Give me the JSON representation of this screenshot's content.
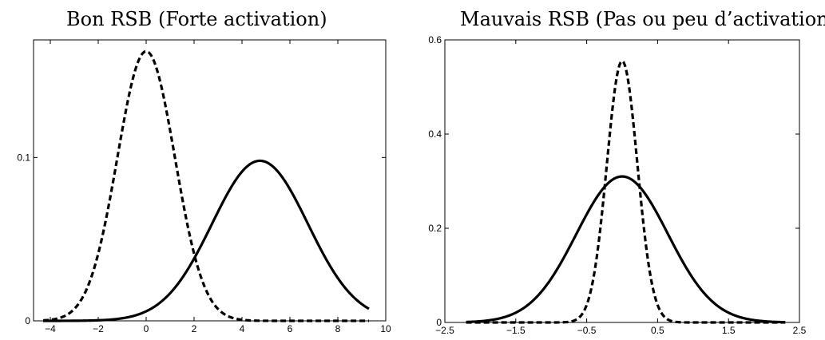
{
  "chart_data": [
    {
      "type": "line",
      "title": "Bon RSB (Forte activation)",
      "xlabel": "",
      "ylabel": "",
      "xlim": [
        -4.7,
        10
      ],
      "ylim": [
        0,
        0.172
      ],
      "xticks": [
        -4,
        -2,
        0,
        2,
        4,
        6,
        8,
        10
      ],
      "xtick_labels": [
        "−4",
        "−2",
        "0",
        "2",
        "4",
        "6",
        "8",
        "10"
      ],
      "yticks": [
        0,
        0.1
      ],
      "ytick_labels": [
        "0",
        "0.1"
      ],
      "series": [
        {
          "style": "dashed",
          "color": "#000000",
          "x": [
            -4.3,
            -3.6,
            -3,
            -2.5,
            -2,
            -1.5,
            -1,
            -0.5,
            0,
            0.5,
            1,
            1.5,
            2,
            2.5,
            3,
            3.6,
            4.5,
            6,
            8,
            9.3
          ],
          "y": [
            0.0,
            0.001,
            0.003,
            0.009,
            0.023,
            0.05,
            0.097,
            0.145,
            0.165,
            0.145,
            0.097,
            0.05,
            0.023,
            0.009,
            0.003,
            0.001,
            0.0,
            0.0,
            0.0,
            0.0
          ]
        },
        {
          "style": "solid",
          "color": "#000000",
          "x": [
            -4.3,
            -1,
            0,
            1,
            2,
            2.5,
            3,
            3.5,
            4,
            4.5,
            4.75,
            5,
            5.5,
            6,
            6.5,
            7,
            7.5,
            8,
            8.5,
            9,
            9.3
          ],
          "y": [
            0.0,
            0.0005,
            0.002,
            0.008,
            0.021,
            0.033,
            0.048,
            0.066,
            0.083,
            0.095,
            0.098,
            0.097,
            0.088,
            0.073,
            0.055,
            0.038,
            0.025,
            0.015,
            0.009,
            0.004,
            0.002
          ]
        }
      ]
    },
    {
      "type": "line",
      "title": "Mauvais RSB (Pas ou peu d’activation)",
      "xlabel": "",
      "ylabel": "",
      "xlim": [
        -2.5,
        2.5
      ],
      "ylim": [
        0,
        0.6
      ],
      "xticks": [
        -2.5,
        -1.5,
        -0.5,
        0.5,
        1.5,
        2.5
      ],
      "xtick_labels": [
        "−2.5",
        "−1.5",
        "−0.5",
        "0.5",
        "1.5",
        "2.5"
      ],
      "yticks": [
        0,
        0.2,
        0.4,
        0.6
      ],
      "ytick_labels": [
        "0",
        "0.2",
        "0.4",
        "0.6"
      ],
      "series": [
        {
          "style": "dashed",
          "color": "#000000",
          "x": [
            -2.2,
            -1.5,
            -1,
            -0.8,
            -0.6,
            -0.4,
            -0.2,
            0,
            0.2,
            0.4,
            0.6,
            0.8,
            1,
            1.5,
            2.3
          ],
          "y": [
            0.0,
            0.0,
            0.003,
            0.015,
            0.06,
            0.18,
            0.41,
            0.555,
            0.41,
            0.18,
            0.06,
            0.015,
            0.003,
            0.0,
            0.0
          ],
          "sigma": 0.215
        },
        {
          "style": "solid",
          "color": "#000000",
          "x": [
            -2.2,
            -1.5,
            -1,
            -0.5,
            -0.25,
            0,
            0.25,
            0.5,
            1,
            1.5,
            2.3
          ],
          "y": [
            0.004,
            0.035,
            0.11,
            0.22,
            0.285,
            0.31,
            0.285,
            0.22,
            0.11,
            0.035,
            0.004
          ],
          "sigma": 0.645
        }
      ]
    }
  ]
}
